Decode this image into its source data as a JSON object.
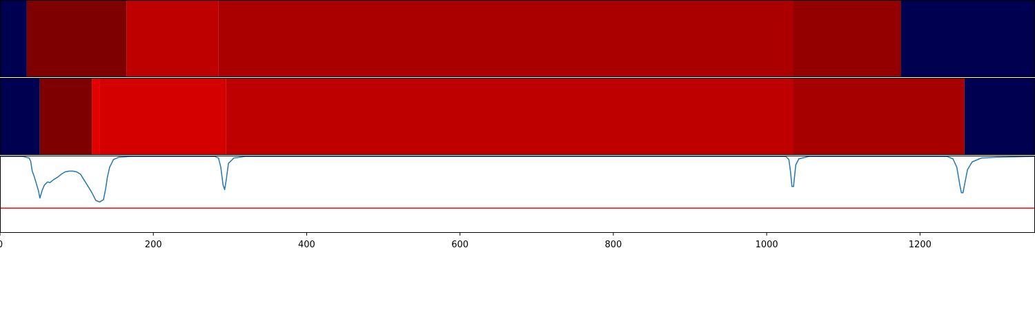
{
  "chart_data": {
    "type": "heatmap",
    "xlim": [
      0,
      1350
    ],
    "x_ticks": [
      0,
      200,
      400,
      600,
      800,
      1000,
      1200
    ],
    "x_tick_labels": [
      "0",
      "200",
      "400",
      "600",
      "800",
      "1000",
      "1200"
    ],
    "colors": {
      "dark_navy": "#000050",
      "dark_red": "#7f0000",
      "red_bright": "#bf0000",
      "red_mid": "#aa0000",
      "red_deep": "#940000",
      "red_strip2": "#bf0000",
      "red_light": "#d40000",
      "red_peak": "#e50000",
      "red_edge": "#a60000",
      "signal_line": "#1f77b4",
      "threshold_line": "#ff0000"
    },
    "strips": [
      {
        "name": "strip-1",
        "segments": [
          {
            "start": 0,
            "end": 35,
            "color": "dark_navy"
          },
          {
            "start": 35,
            "end": 165,
            "color": "dark_red"
          },
          {
            "start": 165,
            "end": 285,
            "color": "red_bright"
          },
          {
            "start": 285,
            "end": 1035,
            "color": "red_mid"
          },
          {
            "start": 1035,
            "end": 1175,
            "color": "red_deep"
          },
          {
            "start": 1175,
            "end": 1350,
            "color": "dark_navy"
          }
        ]
      },
      {
        "name": "strip-2",
        "segments": [
          {
            "start": 0,
            "end": 52,
            "color": "dark_navy"
          },
          {
            "start": 52,
            "end": 120,
            "color": "dark_red"
          },
          {
            "start": 120,
            "end": 130,
            "color": "red_peak"
          },
          {
            "start": 130,
            "end": 295,
            "color": "red_light"
          },
          {
            "start": 295,
            "end": 1035,
            "color": "red_strip2"
          },
          {
            "start": 1035,
            "end": 1258,
            "color": "red_edge"
          },
          {
            "start": 1258,
            "end": 1350,
            "color": "dark_navy"
          }
        ]
      }
    ],
    "signal": {
      "y_range": [
        0,
        1
      ],
      "threshold": 0.32,
      "points": [
        [
          0,
          0.99
        ],
        [
          30,
          0.99
        ],
        [
          38,
          0.97
        ],
        [
          40,
          0.93
        ],
        [
          42,
          0.8
        ],
        [
          45,
          0.72
        ],
        [
          48,
          0.62
        ],
        [
          50,
          0.55
        ],
        [
          52,
          0.45
        ],
        [
          55,
          0.55
        ],
        [
          58,
          0.62
        ],
        [
          60,
          0.64
        ],
        [
          62,
          0.66
        ],
        [
          65,
          0.65
        ],
        [
          70,
          0.69
        ],
        [
          75,
          0.72
        ],
        [
          80,
          0.76
        ],
        [
          85,
          0.79
        ],
        [
          90,
          0.8
        ],
        [
          95,
          0.8
        ],
        [
          100,
          0.79
        ],
        [
          105,
          0.76
        ],
        [
          110,
          0.68
        ],
        [
          115,
          0.6
        ],
        [
          120,
          0.52
        ],
        [
          125,
          0.42
        ],
        [
          130,
          0.4
        ],
        [
          135,
          0.43
        ],
        [
          138,
          0.58
        ],
        [
          140,
          0.72
        ],
        [
          143,
          0.85
        ],
        [
          148,
          0.95
        ],
        [
          155,
          0.98
        ],
        [
          170,
          0.99
        ],
        [
          280,
          0.99
        ],
        [
          285,
          0.97
        ],
        [
          288,
          0.85
        ],
        [
          291,
          0.62
        ],
        [
          293,
          0.56
        ],
        [
          295,
          0.68
        ],
        [
          298,
          0.9
        ],
        [
          305,
          0.97
        ],
        [
          320,
          0.99
        ],
        [
          1025,
          0.99
        ],
        [
          1029,
          0.95
        ],
        [
          1031,
          0.8
        ],
        [
          1033,
          0.6
        ],
        [
          1035,
          0.6
        ],
        [
          1038,
          0.88
        ],
        [
          1042,
          0.96
        ],
        [
          1055,
          0.99
        ],
        [
          1235,
          0.99
        ],
        [
          1243,
          0.96
        ],
        [
          1248,
          0.85
        ],
        [
          1252,
          0.62
        ],
        [
          1254,
          0.52
        ],
        [
          1256,
          0.52
        ],
        [
          1258,
          0.62
        ],
        [
          1262,
          0.82
        ],
        [
          1268,
          0.92
        ],
        [
          1280,
          0.97
        ],
        [
          1300,
          0.98
        ],
        [
          1350,
          0.99
        ]
      ]
    }
  }
}
